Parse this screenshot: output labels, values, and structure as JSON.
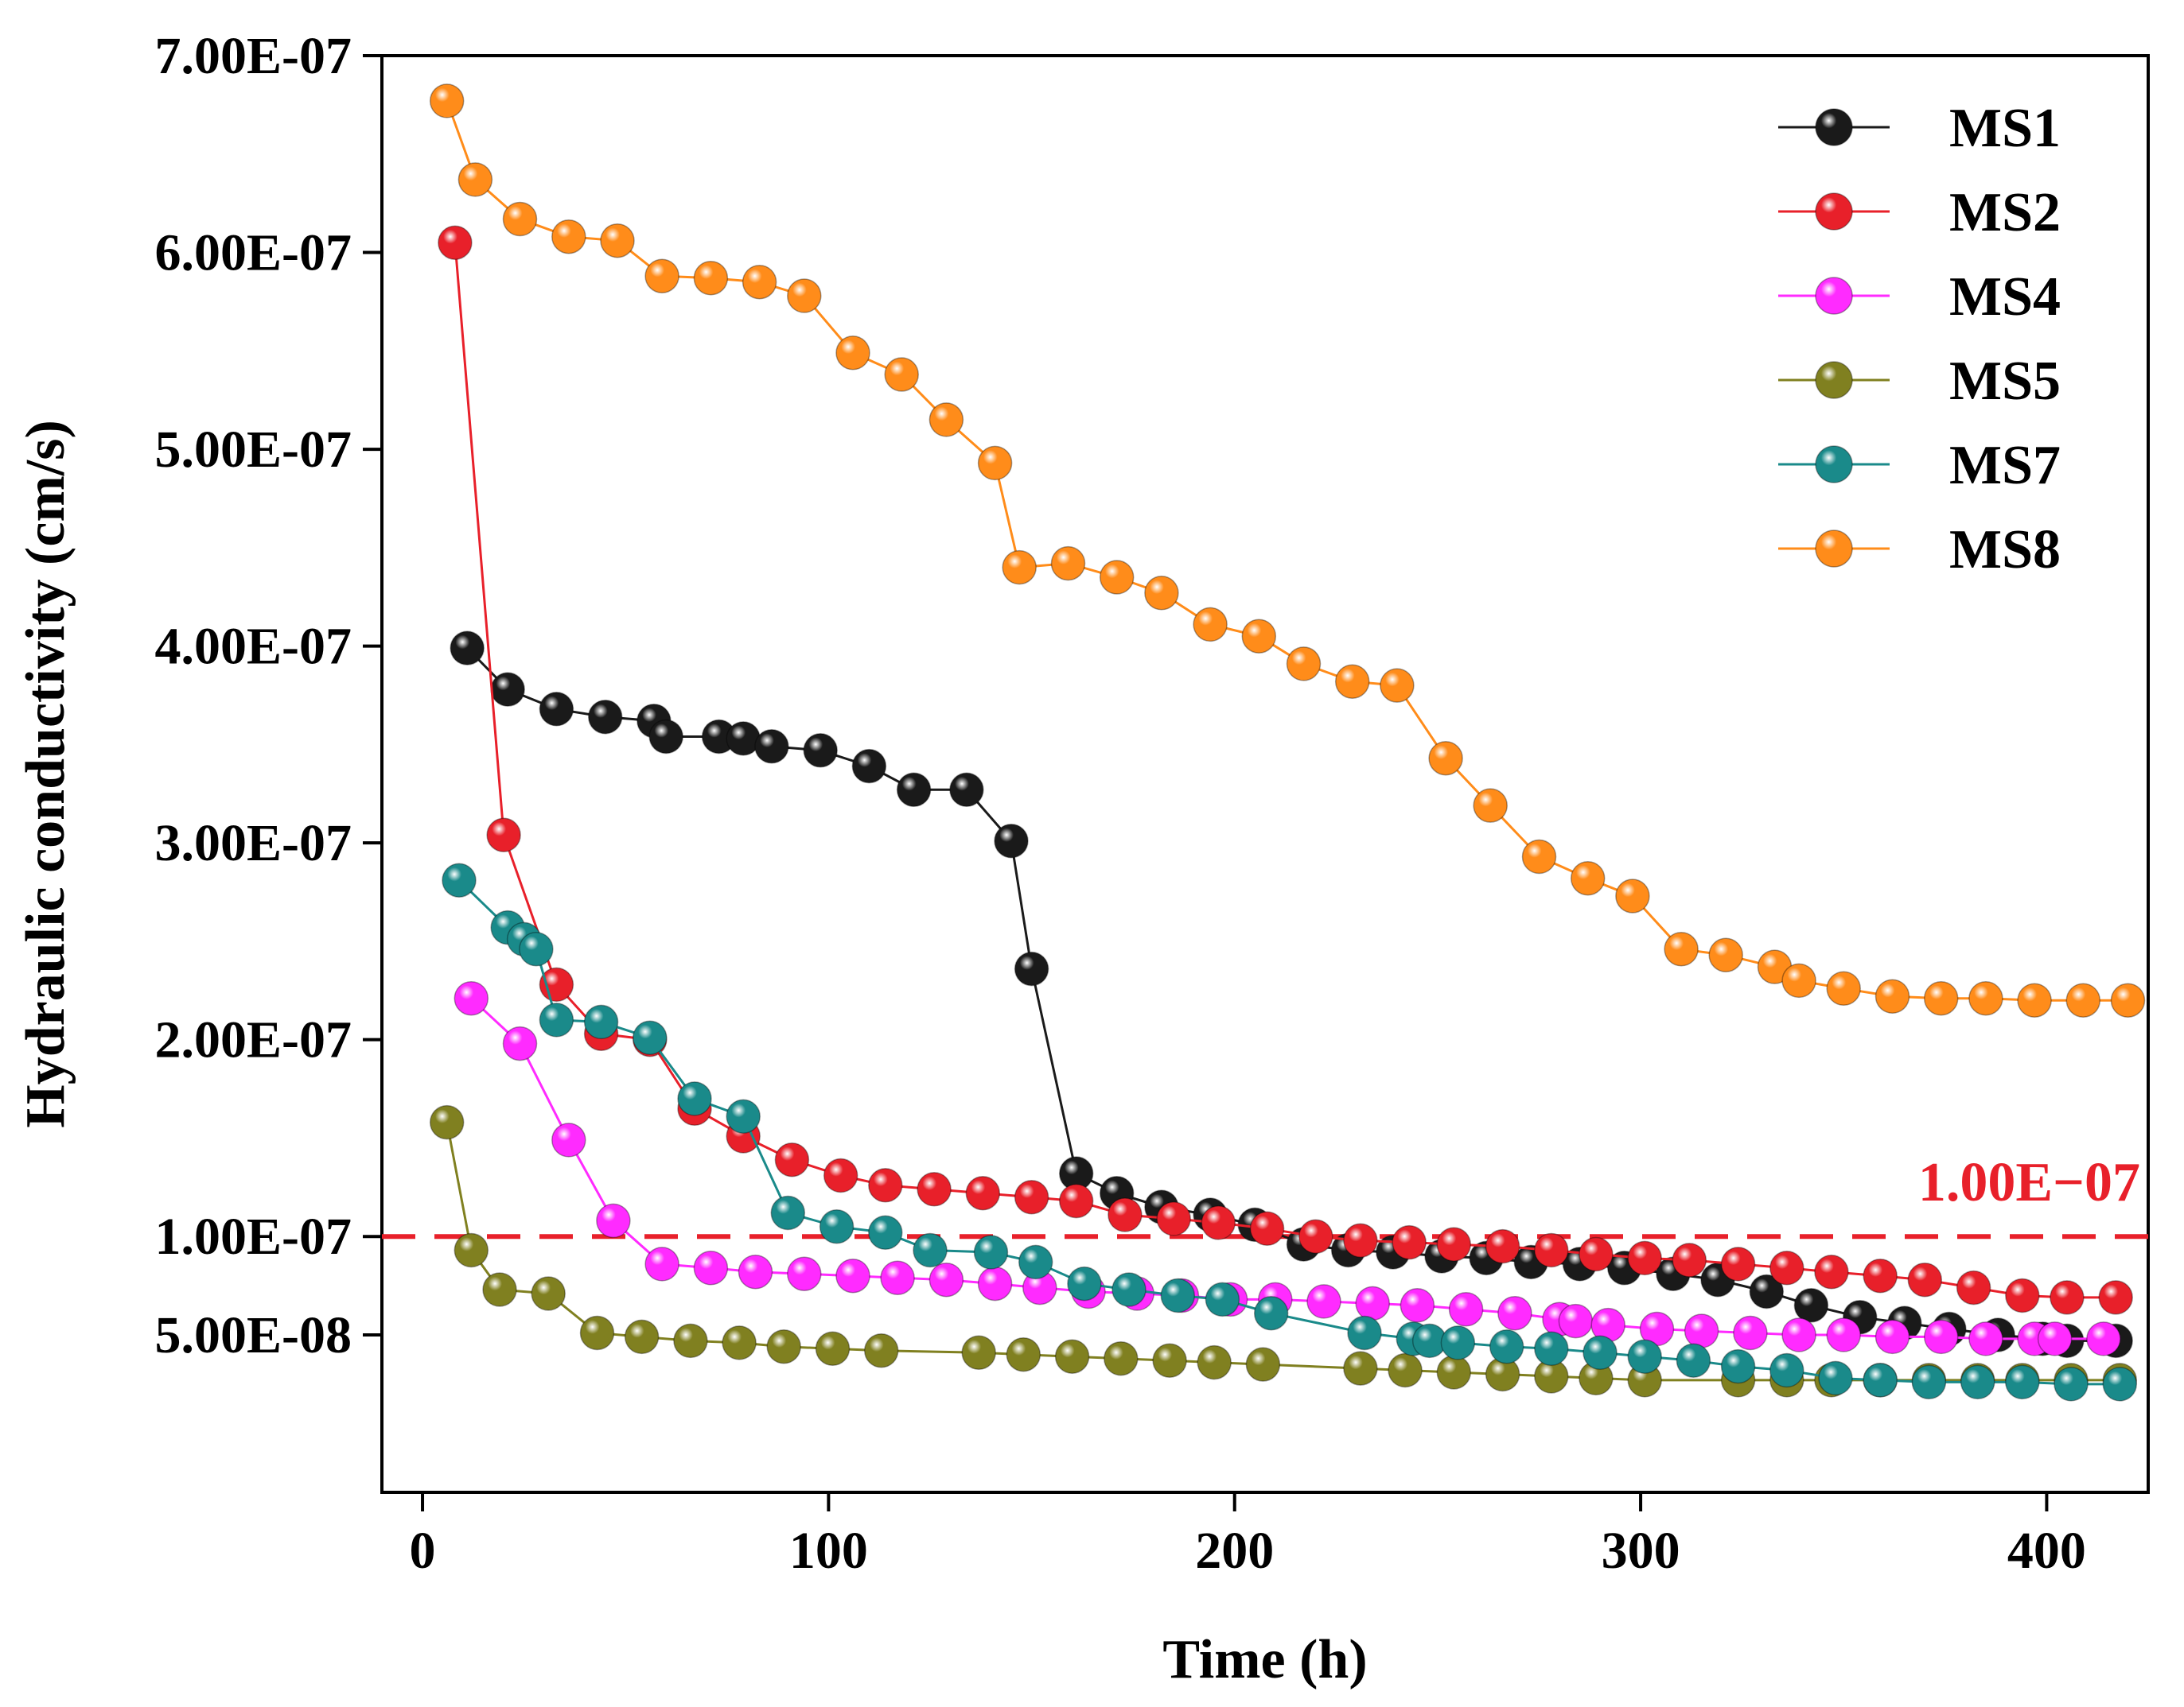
{
  "chart_data": {
    "type": "line",
    "title": "",
    "xlabel": "Time (h)",
    "ylabel": "Hydraulic conductivity (cm/s)",
    "xlim": [
      -10,
      425
    ],
    "ylim": [
      -3e-08,
      7e-07
    ],
    "x_ticks": [
      0,
      100,
      200,
      300,
      400
    ],
    "x_tick_labels": [
      "0",
      "100",
      "200",
      "300",
      "400"
    ],
    "y_ticks": [
      5e-08,
      1e-07,
      2e-07,
      3e-07,
      4e-07,
      5e-07,
      6e-07,
      7e-07
    ],
    "y_tick_labels": [
      "5.00E-08",
      "1.00E-07",
      "2.00E-07",
      "3.00E-07",
      "4.00E-07",
      "5.00E-07",
      "6.00E-07",
      "7.00E-07"
    ],
    "grid": false,
    "legend_position": "top-right",
    "reference_line": {
      "y": 1e-07,
      "label": "1.00E−07",
      "color": "#e8202a",
      "style": "dashed"
    },
    "series": [
      {
        "name": "MS1",
        "color": "#1a1a1a",
        "x": [
          11,
          21,
          33,
          45,
          57,
          60,
          73,
          79,
          86,
          98,
          110,
          121,
          134,
          145,
          150,
          161,
          171,
          182,
          194,
          205,
          217,
          228,
          239,
          251,
          262,
          273,
          285,
          296,
          308,
          319,
          331,
          342,
          354,
          365,
          376,
          388,
          399,
          405,
          417
        ],
        "y": [
          3.99e-07,
          3.78e-07,
          3.68e-07,
          3.64e-07,
          3.62e-07,
          3.54e-07,
          3.54e-07,
          3.53e-07,
          3.49e-07,
          3.47e-07,
          3.39e-07,
          3.27e-07,
          3.27e-07,
          3.01e-07,
          2.36e-07,
          1.32e-07,
          1.22e-07,
          1.15e-07,
          1.11e-07,
          1.06e-07,
          9.6e-08,
          9.3e-08,
          9.2e-08,
          9e-08,
          8.9e-08,
          8.7e-08,
          8.6e-08,
          8.4e-08,
          8.1e-08,
          7.8e-08,
          7.2e-08,
          6.5e-08,
          5.9e-08,
          5.6e-08,
          5.3e-08,
          5e-08,
          4.8e-08,
          4.7e-08,
          4.7e-08
        ]
      },
      {
        "name": "MS2",
        "color": "#e8202a",
        "x": [
          8,
          20,
          33,
          44,
          56,
          67,
          79,
          91,
          103,
          114,
          126,
          138,
          150,
          161,
          173,
          185,
          196,
          208,
          220,
          231,
          243,
          254,
          266,
          278,
          289,
          301,
          312,
          324,
          336,
          347,
          359,
          370,
          382,
          394,
          405,
          417
        ],
        "y": [
          6.05e-07,
          3.04e-07,
          2.28e-07,
          2.03e-07,
          2e-07,
          1.65e-07,
          1.51e-07,
          1.39e-07,
          1.31e-07,
          1.26e-07,
          1.24e-07,
          1.22e-07,
          1.2e-07,
          1.18e-07,
          1.11e-07,
          1.09e-07,
          1.07e-07,
          1.04e-07,
          1e-07,
          9.8e-08,
          9.7e-08,
          9.6e-08,
          9.5e-08,
          9.3e-08,
          9.1e-08,
          8.9e-08,
          8.8e-08,
          8.6e-08,
          8.4e-08,
          8.2e-08,
          8e-08,
          7.8e-08,
          7.4e-08,
          7e-08,
          6.9e-08,
          6.9e-08
        ]
      },
      {
        "name": "MS4",
        "color": "#ff2bff",
        "x": [
          12,
          24,
          36,
          47,
          59,
          71,
          82,
          94,
          106,
          117,
          129,
          141,
          152,
          164,
          176,
          187,
          199,
          210,
          222,
          234,
          245,
          257,
          269,
          280,
          284,
          292,
          304,
          315,
          327,
          339,
          350,
          362,
          374,
          385,
          397,
          402,
          414
        ],
        "y": [
          2.21e-07,
          1.98e-07,
          1.49e-07,
          1.08e-07,
          8.6e-08,
          8.4e-08,
          8.2e-08,
          8.1e-08,
          8e-08,
          7.9e-08,
          7.8e-08,
          7.6e-08,
          7.4e-08,
          7.2e-08,
          7.1e-08,
          7e-08,
          6.8e-08,
          6.8e-08,
          6.7e-08,
          6.6e-08,
          6.5e-08,
          6.3e-08,
          6.1e-08,
          5.8e-08,
          5.7e-08,
          5.5e-08,
          5.3e-08,
          5.2e-08,
          5.1e-08,
          5e-08,
          5e-08,
          4.9e-08,
          4.9e-08,
          4.8e-08,
          4.8e-08,
          4.8e-08,
          4.8e-08
        ]
      },
      {
        "name": "MS5",
        "color": "#808020",
        "x": [
          6,
          12,
          19,
          31,
          43,
          54,
          66,
          78,
          89,
          101,
          113,
          137,
          148,
          160,
          172,
          184,
          195,
          207,
          231,
          242,
          254,
          266,
          278,
          289,
          301,
          324,
          336,
          347,
          359,
          371,
          383,
          394,
          406,
          418
        ],
        "y": [
          1.58e-07,
          9.3e-08,
          7.3e-08,
          7.1e-08,
          5.1e-08,
          4.9e-08,
          4.7e-08,
          4.6e-08,
          4.4e-08,
          4.3e-08,
          4.2e-08,
          4.1e-08,
          4e-08,
          3.9e-08,
          3.8e-08,
          3.7e-08,
          3.6e-08,
          3.5e-08,
          3.3e-08,
          3.2e-08,
          3.1e-08,
          3e-08,
          2.9e-08,
          2.8e-08,
          2.7e-08,
          2.7e-08,
          2.7e-08,
          2.7e-08,
          2.7e-08,
          2.7e-08,
          2.7e-08,
          2.7e-08,
          2.7e-08,
          2.7e-08
        ]
      },
      {
        "name": "MS7",
        "color": "#1a8a8a",
        "x": [
          9,
          21,
          25,
          28,
          33,
          44,
          56,
          67,
          79,
          90,
          102,
          114,
          125,
          140,
          151,
          163,
          174,
          186,
          197,
          209,
          232,
          244,
          248,
          255,
          267,
          278,
          290,
          301,
          313,
          324,
          336,
          348,
          359,
          371,
          383,
          394,
          406,
          418
        ],
        "y": [
          2.81e-07,
          2.57e-07,
          2.51e-07,
          2.46e-07,
          2.1e-07,
          2.09e-07,
          2.01e-07,
          1.7e-07,
          1.61e-07,
          1.12e-07,
          1.05e-07,
          1.02e-07,
          9.3e-08,
          9.2e-08,
          8.7e-08,
          7.6e-08,
          7.3e-08,
          7e-08,
          6.8e-08,
          6.1e-08,
          5.1e-08,
          4.8e-08,
          4.7e-08,
          4.6e-08,
          4.4e-08,
          4.3e-08,
          4.1e-08,
          3.9e-08,
          3.7e-08,
          3.4e-08,
          3.2e-08,
          2.8e-08,
          2.7e-08,
          2.6e-08,
          2.6e-08,
          2.6e-08,
          2.5e-08,
          2.5e-08
        ]
      },
      {
        "name": "MS8",
        "color": "#ff8c1a",
        "x": [
          6,
          13,
          24,
          36,
          48,
          59,
          71,
          83,
          94,
          106,
          118,
          129,
          141,
          147,
          159,
          171,
          182,
          194,
          206,
          217,
          229,
          240,
          252,
          263,
          275,
          287,
          298,
          310,
          321,
          333,
          339,
          350,
          362,
          374,
          385,
          397,
          409,
          420
        ],
        "y": [
          6.77e-07,
          6.37e-07,
          6.17e-07,
          6.08e-07,
          6.06e-07,
          5.88e-07,
          5.87e-07,
          5.85e-07,
          5.78e-07,
          5.49e-07,
          5.38e-07,
          5.15e-07,
          4.93e-07,
          4.4e-07,
          4.42e-07,
          4.35e-07,
          4.27e-07,
          4.11e-07,
          4.05e-07,
          3.91e-07,
          3.82e-07,
          3.8e-07,
          3.43e-07,
          3.19e-07,
          2.93e-07,
          2.82e-07,
          2.73e-07,
          2.46e-07,
          2.43e-07,
          2.37e-07,
          2.3e-07,
          2.26e-07,
          2.22e-07,
          2.21e-07,
          2.21e-07,
          2.2e-07,
          2.2e-07,
          2.2e-07
        ]
      }
    ]
  }
}
